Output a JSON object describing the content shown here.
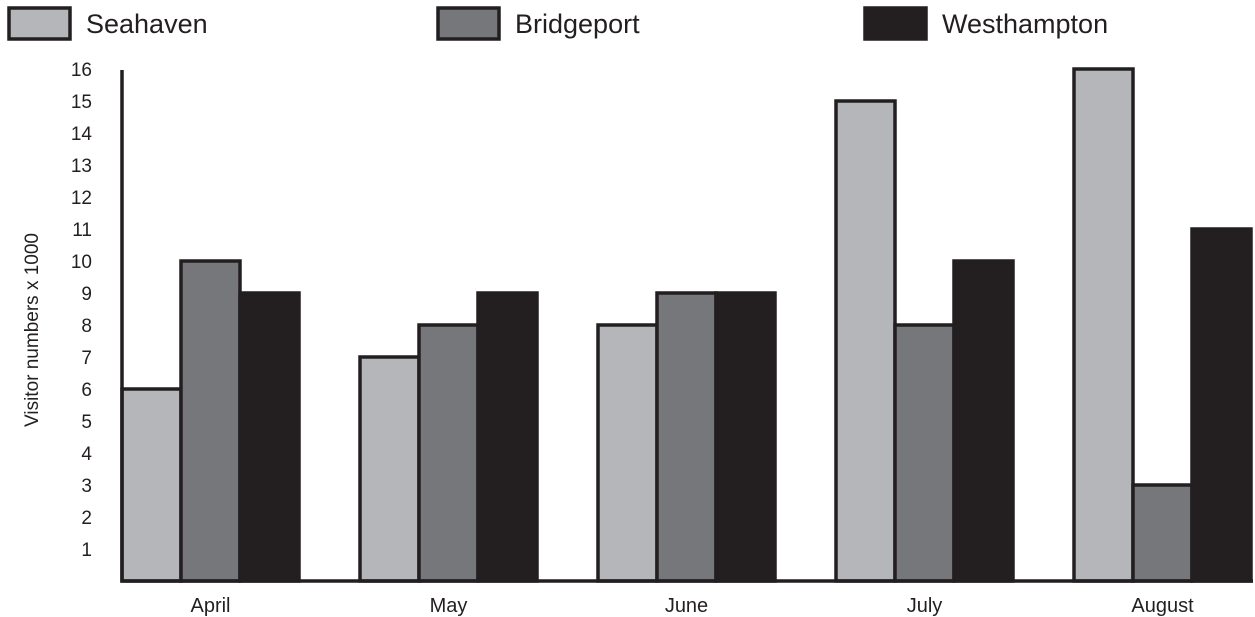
{
  "chart_data": {
    "type": "bar",
    "title": "",
    "xlabel": "",
    "ylabel": "Visitor numbers x 1000",
    "categories": [
      "April",
      "May",
      "June",
      "July",
      "August"
    ],
    "series": [
      {
        "name": "Seahaven",
        "color": "#b5b6ba",
        "values": [
          6,
          7,
          8,
          15,
          16
        ]
      },
      {
        "name": "Bridgeport",
        "color": "#76777b",
        "values": [
          10,
          8,
          9,
          8,
          3
        ]
      },
      {
        "name": "Westhampton",
        "color": "#231f20",
        "values": [
          9,
          9,
          9,
          10,
          11
        ]
      }
    ],
    "ylim": [
      0,
      16
    ],
    "yticks": [
      1,
      2,
      3,
      4,
      5,
      6,
      7,
      8,
      9,
      10,
      11,
      12,
      13,
      14,
      15,
      16
    ],
    "grid": false,
    "legend_position": "top"
  }
}
